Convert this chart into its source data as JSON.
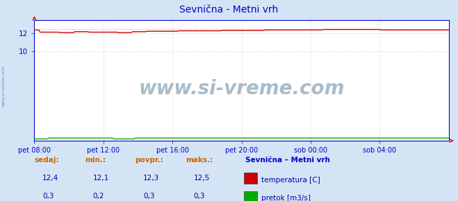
{
  "title": "Sevnična - Metni vrh",
  "bg_color": "#d4e4f4",
  "plot_bg_color": "#ffffff",
  "grid_color": "#ffbbbb",
  "x_labels": [
    "pet 08:00",
    "pet 12:00",
    "pet 16:00",
    "pet 20:00",
    "sob 00:00",
    "sob 04:00"
  ],
  "x_ticks_norm": [
    0.0,
    0.1667,
    0.3333,
    0.5,
    0.6667,
    0.8333
  ],
  "ylim_min": 0,
  "ylim_max": 13.5,
  "yticks": [
    10,
    12
  ],
  "temp_color": "#cc0000",
  "flow_color": "#00aa00",
  "dashed_color": "#ff8888",
  "axis_color": "#0000cc",
  "text_color": "#0000aa",
  "watermark": "www.si-vreme.com",
  "watermark_color": "#1a5276",
  "sidebar_text": "www.si-vreme.com",
  "legend_title": "Sevnična – Metni vrh",
  "legend_items": [
    "temperatura [C]",
    "pretok [m3/s]"
  ],
  "legend_colors": [
    "#cc0000",
    "#00aa00"
  ],
  "stats_headers": [
    "sedaj:",
    "min.:",
    "povpr.:",
    "maks.:"
  ],
  "stats_temp": [
    "12,4",
    "12,1",
    "12,3",
    "12,5"
  ],
  "stats_flow": [
    "0,3",
    "0,2",
    "0,3",
    "0,3"
  ],
  "header_color": "#cc6600",
  "dashed_level": 12.5,
  "temp_line_segments": [
    [
      0,
      4,
      12.4
    ],
    [
      4,
      18,
      12.15
    ],
    [
      18,
      28,
      12.1
    ],
    [
      28,
      38,
      12.2
    ],
    [
      38,
      58,
      12.15
    ],
    [
      58,
      68,
      12.1
    ],
    [
      68,
      78,
      12.2
    ],
    [
      78,
      100,
      12.25
    ],
    [
      100,
      130,
      12.3
    ],
    [
      130,
      160,
      12.35
    ],
    [
      160,
      200,
      12.4
    ],
    [
      200,
      240,
      12.45
    ],
    [
      240,
      288,
      12.4
    ]
  ],
  "flow_level": 0.3,
  "n_points": 288
}
